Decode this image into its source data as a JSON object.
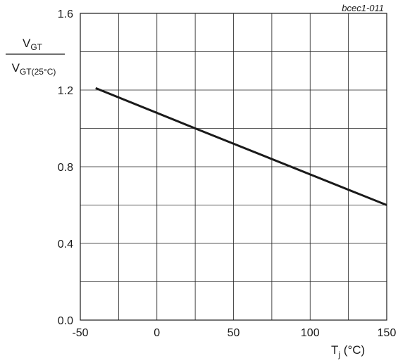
{
  "figure_code": "bcec1-011",
  "ylabel": {
    "numerator_main": "V",
    "numerator_sub": "GT",
    "denominator_main": "V",
    "denominator_sub": "GT(25°C)"
  },
  "xlabel": {
    "main": "T",
    "sub": "j",
    "unit": " (°C)"
  },
  "chart_data": {
    "type": "line",
    "xlim": [
      -50,
      150
    ],
    "ylim": [
      0.0,
      1.6
    ],
    "x_ticks": [
      -50,
      0,
      50,
      100,
      150
    ],
    "x_tick_labels": [
      "-50",
      "0",
      "50",
      "100",
      "150"
    ],
    "x_grid_step": 25,
    "y_ticks": [
      0.0,
      0.4,
      0.8,
      1.2,
      1.6
    ],
    "y_tick_labels": [
      "0.0",
      "0.4",
      "0.8",
      "1.2",
      "1.6"
    ],
    "y_grid_step": 0.2,
    "grid": true,
    "series": [
      {
        "x": [
          -40,
          25,
          150
        ],
        "y": [
          1.21,
          1.0,
          0.6
        ]
      }
    ]
  }
}
